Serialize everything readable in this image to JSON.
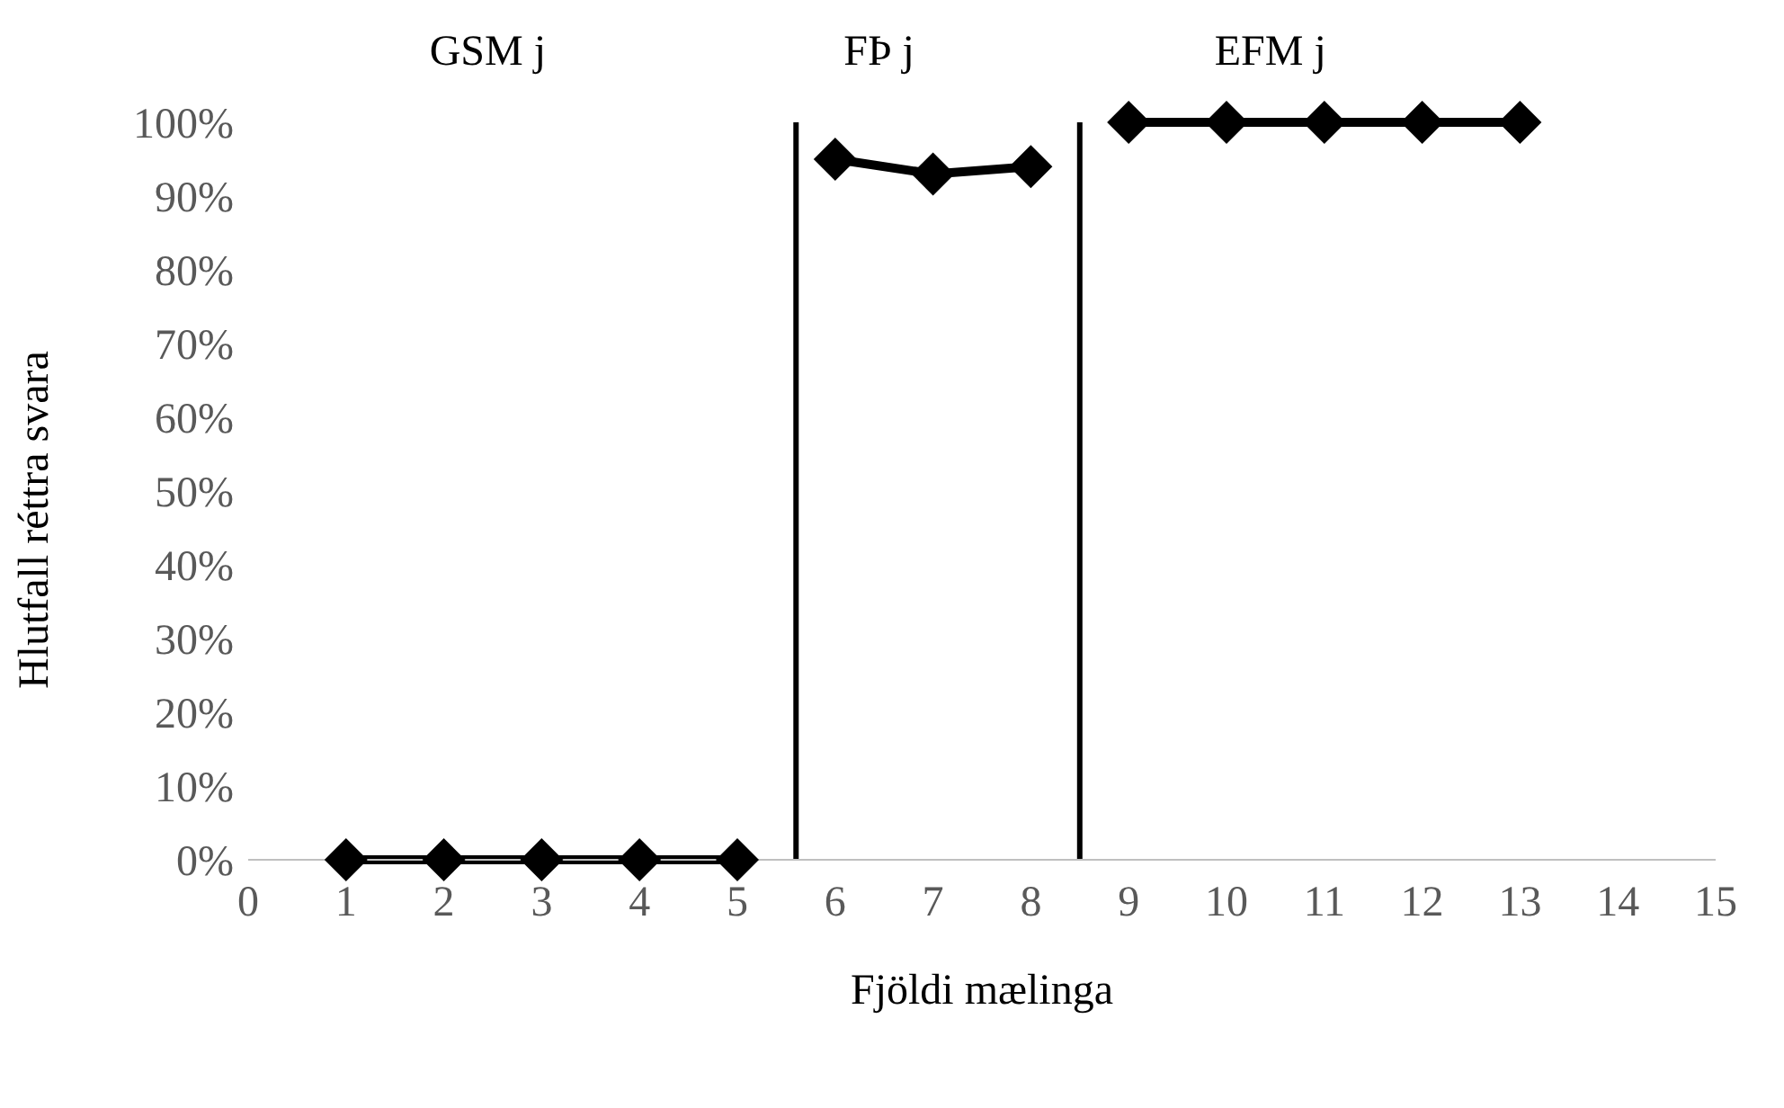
{
  "chart_data": {
    "type": "line",
    "xlabel": "Fjöldi mælinga",
    "ylabel": "Hlutfall réttra svara",
    "annotations": [
      "GSM j",
      "FÞ j",
      "EFM j"
    ],
    "series": [
      {
        "color": "#000000",
        "x": [
          1,
          2,
          3,
          4,
          5
        ],
        "values": [
          0,
          0,
          0,
          0,
          0
        ]
      },
      {
        "color": "#000000",
        "x": [
          6,
          7,
          8
        ],
        "values": [
          95,
          93,
          94
        ]
      },
      {
        "color": "#000000",
        "x": [
          9,
          10,
          11,
          12,
          13
        ],
        "values": [
          100,
          100,
          100,
          100,
          100
        ]
      }
    ],
    "xlim": [
      0,
      15
    ],
    "xticks": [
      0,
      1,
      2,
      3,
      4,
      5,
      6,
      7,
      8,
      9,
      10,
      11,
      12,
      13,
      14,
      15
    ],
    "ylim": [
      0,
      100
    ],
    "yticks": [
      {
        "value": 0,
        "label": "0%"
      },
      {
        "value": 10,
        "label": "10%"
      },
      {
        "value": 20,
        "label": "20%"
      },
      {
        "value": 30,
        "label": "30%"
      },
      {
        "value": 40,
        "label": "40%"
      },
      {
        "value": 50,
        "label": "50%"
      },
      {
        "value": 60,
        "label": "60%"
      },
      {
        "value": 70,
        "label": "70%"
      },
      {
        "value": 80,
        "label": "80%"
      },
      {
        "value": 90,
        "label": "90%"
      },
      {
        "value": 100,
        "label": "100%"
      }
    ],
    "ref_lines": [
      {
        "axis": "x",
        "value": 5.6,
        "color": "#000000"
      },
      {
        "axis": "x",
        "value": 8.5,
        "color": "#000000"
      }
    ],
    "marker": "diamond",
    "line_style": "solid",
    "grid": false,
    "legend": false
  }
}
